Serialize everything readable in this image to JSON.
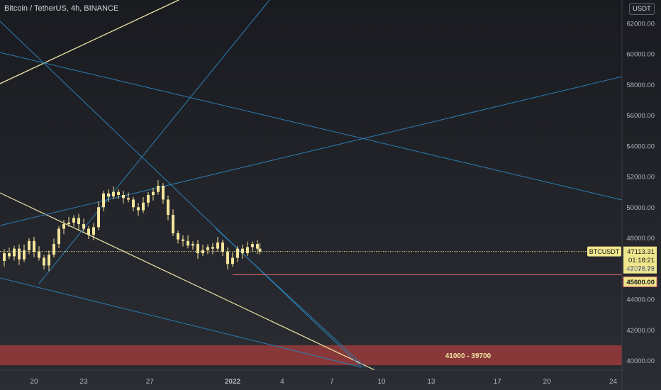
{
  "header": {
    "title": "Bitcoin / TetherUS, 4h, BINANCE",
    "currency": "USDT"
  },
  "colors": {
    "background_top": "#1a1b20",
    "background_bottom": "#2b2d33",
    "candle": "#f5e59c",
    "price_line": "#f0e68c",
    "trend_yellow": "#f0e6a8",
    "trend_blue": "#2a7fb4",
    "support_line": "#e36a6a",
    "zone_fill": "#9a3b3b",
    "axis_text": "#b2b5be"
  },
  "chart_data": {
    "type": "candlestick",
    "symbol": "BTCUSDT",
    "timeframe": "4h",
    "exchange": "BINANCE",
    "y_ticks": [
      40000,
      42000,
      44000,
      46000,
      48000,
      50000,
      52000,
      54000,
      56000,
      58000,
      60000,
      62000
    ],
    "y_tick_labels": [
      "40000.00",
      "42000.00",
      "44000.00",
      "46000.00",
      "48000.00",
      "50000.00",
      "52000.00",
      "54000.00",
      "56000.00",
      "58000.00",
      "60000.00",
      "62000.00"
    ],
    "x_ticks": [
      {
        "label": "20",
        "day": 20
      },
      {
        "label": "23",
        "day": 23
      },
      {
        "label": "27",
        "day": 27
      },
      {
        "label": "2022",
        "day": 32
      },
      {
        "label": "4",
        "day": 35
      },
      {
        "label": "7",
        "day": 38
      },
      {
        "label": "10",
        "day": 41
      },
      {
        "label": "13",
        "day": 44
      },
      {
        "label": "17",
        "day": 48
      },
      {
        "label": "20",
        "day": 51
      },
      {
        "label": "24",
        "day": 55
      }
    ],
    "close_path": [
      [
        17.9,
        46500
      ],
      [
        18.2,
        47000
      ],
      [
        18.5,
        46800
      ],
      [
        18.8,
        47300
      ],
      [
        19.1,
        46600
      ],
      [
        19.4,
        47200
      ],
      [
        19.7,
        47800
      ],
      [
        20.0,
        47100
      ],
      [
        20.3,
        46700
      ],
      [
        20.6,
        46200
      ],
      [
        20.9,
        46900
      ],
      [
        21.2,
        47600
      ],
      [
        21.5,
        48600
      ],
      [
        21.8,
        48900
      ],
      [
        22.1,
        49000
      ],
      [
        22.4,
        49300
      ],
      [
        22.7,
        48900
      ],
      [
        23.0,
        48600
      ],
      [
        23.3,
        48200
      ],
      [
        23.6,
        48700
      ],
      [
        23.9,
        50000
      ],
      [
        24.2,
        50900
      ],
      [
        24.5,
        50700
      ],
      [
        24.8,
        51000
      ],
      [
        25.1,
        50800
      ],
      [
        25.4,
        50600
      ],
      [
        25.7,
        50500
      ],
      [
        26.0,
        50000
      ],
      [
        26.3,
        49800
      ],
      [
        26.6,
        50300
      ],
      [
        26.9,
        50800
      ],
      [
        27.2,
        51000
      ],
      [
        27.5,
        51400
      ],
      [
        27.8,
        50500
      ],
      [
        28.1,
        49500
      ],
      [
        28.4,
        48300
      ],
      [
        28.7,
        47900
      ],
      [
        29.0,
        47800
      ],
      [
        29.3,
        47500
      ],
      [
        29.6,
        47600
      ],
      [
        29.9,
        47000
      ],
      [
        30.2,
        47200
      ],
      [
        30.5,
        47400
      ],
      [
        30.8,
        47300
      ],
      [
        31.1,
        47700
      ],
      [
        31.4,
        47100
      ],
      [
        31.7,
        46300
      ],
      [
        32.0,
        46700
      ],
      [
        32.3,
        47300
      ],
      [
        32.6,
        47000
      ],
      [
        32.9,
        47400
      ],
      [
        33.2,
        47600
      ],
      [
        33.5,
        47300
      ],
      [
        33.65,
        47113.31
      ]
    ],
    "last_price": {
      "label": "BTCUSDT",
      "value": "47113.31",
      "countdown": "01:18:21",
      "sub_value": "47078.78"
    },
    "support_level": {
      "value": "45600.00",
      "start_day": 32.0
    },
    "zone": {
      "label": "41000 - 39700",
      "high": 41000,
      "low": 39700,
      "start_day": 17.9
    }
  }
}
